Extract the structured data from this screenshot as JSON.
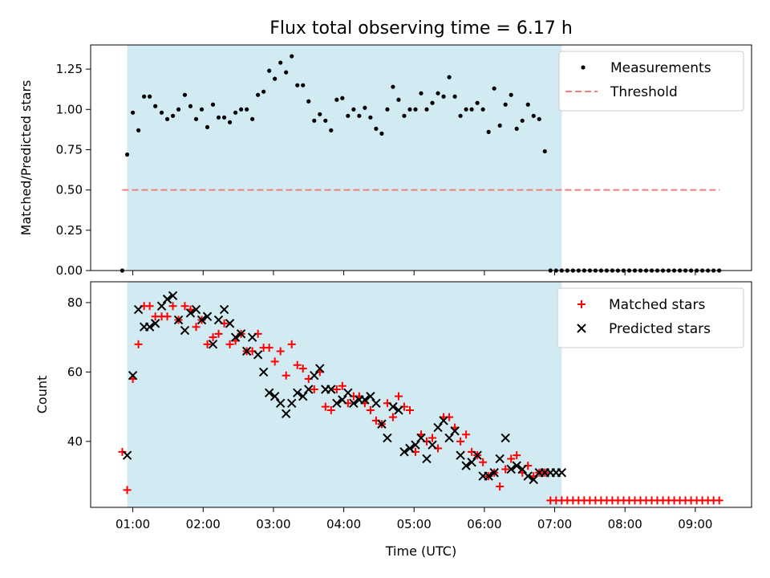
{
  "chart_data": {
    "title": "Flux total observing time = 6.17 h",
    "xlabel": "Time (UTC)",
    "x_tick_labels": [
      "01:00",
      "02:00",
      "03:00",
      "04:00",
      "05:00",
      "06:00",
      "07:00",
      "08:00",
      "09:00"
    ],
    "x_tick_hours": [
      1,
      2,
      3,
      4,
      5,
      6,
      7,
      8,
      9
    ],
    "x_range_hours": [
      0.4,
      9.8
    ],
    "shaded_interval_hours": [
      0.92,
      7.1
    ],
    "shade_color": "#add8e6",
    "panels": [
      {
        "type": "scatter",
        "ylabel": "Matched/Predicted stars",
        "ylim": [
          0,
          1.4
        ],
        "y_ticks": [
          0.0,
          0.25,
          0.5,
          0.75,
          1.0,
          1.25
        ],
        "y_tick_labels": [
          "0.00",
          "0.25",
          "0.50",
          "0.75",
          "1.00",
          "1.25"
        ],
        "legend_position": "top-right",
        "series": [
          {
            "name": "Measurements",
            "marker": "dot",
            "color": "#000000",
            "x": [
              0.85,
              0.92,
              1.0,
              1.08,
              1.16,
              1.24,
              1.32,
              1.41,
              1.49,
              1.57,
              1.65,
              1.74,
              1.82,
              1.9,
              1.98,
              2.06,
              2.14,
              2.22,
              2.3,
              2.38,
              2.46,
              2.54,
              2.62,
              2.7,
              2.78,
              2.86,
              2.94,
              3.02,
              3.1,
              3.18,
              3.26,
              3.34,
              3.42,
              3.5,
              3.58,
              3.66,
              3.74,
              3.82,
              3.9,
              3.98,
              4.06,
              4.14,
              4.22,
              4.3,
              4.38,
              4.46,
              4.54,
              4.62,
              4.7,
              4.78,
              4.86,
              4.94,
              5.02,
              5.1,
              5.18,
              5.26,
              5.34,
              5.42,
              5.5,
              5.58,
              5.66,
              5.74,
              5.82,
              5.9,
              5.98,
              6.06,
              6.14,
              6.22,
              6.3,
              6.38,
              6.46,
              6.54,
              6.62,
              6.7,
              6.78,
              6.86,
              6.94,
              7.02,
              7.1,
              7.18,
              7.26,
              7.34,
              7.42,
              7.5,
              7.58,
              7.66,
              7.74,
              7.82,
              7.9,
              7.98,
              8.06,
              8.14,
              8.22,
              8.3,
              8.38,
              8.46,
              8.54,
              8.62,
              8.7,
              8.78,
              8.86,
              8.94,
              9.02,
              9.1,
              9.18,
              9.26,
              9.34
            ],
            "y": [
              0.0,
              0.72,
              0.98,
              0.87,
              1.08,
              1.08,
              1.02,
              0.98,
              0.94,
              0.96,
              1.0,
              1.09,
              1.02,
              0.94,
              1.0,
              0.89,
              1.03,
              0.95,
              0.95,
              0.92,
              0.98,
              1.0,
              1.0,
              0.94,
              1.09,
              1.11,
              1.24,
              1.19,
              1.29,
              1.23,
              1.33,
              1.15,
              1.15,
              1.05,
              0.93,
              0.97,
              0.93,
              0.87,
              1.06,
              1.07,
              0.96,
              1.0,
              0.96,
              1.01,
              0.95,
              0.88,
              0.85,
              1.0,
              1.14,
              1.06,
              0.96,
              1.0,
              1.0,
              1.1,
              1.0,
              1.04,
              1.1,
              1.08,
              1.2,
              1.08,
              0.96,
              1.0,
              1.0,
              1.04,
              1.0,
              0.86,
              1.13,
              0.9,
              1.03,
              1.09,
              0.88,
              0.93,
              1.03,
              0.96,
              0.94,
              0.74,
              0.0,
              0.0,
              0.0,
              0.0,
              0.0,
              0.0,
              0.0,
              0.0,
              0.0,
              0.0,
              0.0,
              0.0,
              0.0,
              0.0,
              0.0,
              0.0,
              0.0,
              0.0,
              0.0,
              0.0,
              0.0,
              0.0,
              0.0,
              0.0,
              0.0,
              0.0,
              0.0,
              0.0,
              0.0,
              0.0,
              0.0
            ]
          },
          {
            "name": "Threshold",
            "marker": "dashed-line",
            "color": "#f08080",
            "x": [
              0.85,
              9.35
            ],
            "y": [
              0.5,
              0.5
            ]
          }
        ]
      },
      {
        "type": "scatter",
        "ylabel": "Count",
        "ylim": [
          21,
          86
        ],
        "y_ticks": [
          40,
          60,
          80
        ],
        "y_tick_labels": [
          "40",
          "60",
          "80"
        ],
        "legend_position": "top-right",
        "series": [
          {
            "name": "Matched stars",
            "marker": "plus",
            "color": "#ff0000",
            "x": [
              0.85,
              0.92,
              1.0,
              1.08,
              1.16,
              1.24,
              1.32,
              1.41,
              1.49,
              1.57,
              1.65,
              1.74,
              1.82,
              1.9,
              1.98,
              2.06,
              2.14,
              2.22,
              2.3,
              2.38,
              2.46,
              2.54,
              2.62,
              2.7,
              2.78,
              2.86,
              2.94,
              3.02,
              3.1,
              3.18,
              3.26,
              3.34,
              3.42,
              3.5,
              3.58,
              3.66,
              3.74,
              3.82,
              3.9,
              3.98,
              4.06,
              4.14,
              4.22,
              4.3,
              4.38,
              4.46,
              4.54,
              4.62,
              4.7,
              4.78,
              4.86,
              4.94,
              5.02,
              5.1,
              5.18,
              5.26,
              5.34,
              5.42,
              5.5,
              5.58,
              5.66,
              5.74,
              5.82,
              5.9,
              5.98,
              6.06,
              6.14,
              6.22,
              6.3,
              6.38,
              6.46,
              6.54,
              6.62,
              6.7,
              6.78,
              6.86,
              6.94,
              7.02,
              7.1,
              7.18,
              7.26,
              7.34,
              7.42,
              7.5,
              7.58,
              7.66,
              7.74,
              7.82,
              7.9,
              7.98,
              8.06,
              8.14,
              8.22,
              8.3,
              8.38,
              8.46,
              8.54,
              8.62,
              8.7,
              8.78,
              8.86,
              8.94,
              9.02,
              9.1,
              9.18,
              9.26,
              9.34
            ],
            "y": [
              37,
              26,
              58,
              68,
              79,
              79,
              76,
              76,
              76,
              79,
              75,
              79,
              78,
              73,
              75,
              68,
              70,
              71,
              74,
              68,
              69,
              71,
              66,
              66,
              71,
              67,
              67,
              63,
              66,
              59,
              68,
              62,
              61,
              58,
              55,
              60,
              50,
              49,
              55,
              56,
              51,
              53,
              53,
              51,
              49,
              46,
              45,
              51,
              47,
              53,
              50,
              49,
              37,
              42,
              40,
              41,
              38,
              47,
              47,
              44,
              40,
              42,
              37,
              36,
              34,
              30,
              31,
              27,
              32,
              35,
              36,
              31,
              33,
              30,
              31,
              31,
              23,
              23,
              23,
              23,
              23,
              23,
              23,
              23,
              23,
              23,
              23,
              23,
              23,
              23,
              23,
              23,
              23,
              23,
              23,
              23,
              23,
              23,
              23,
              23,
              23,
              23,
              23,
              23,
              23,
              23,
              23
            ]
          },
          {
            "name": "Predicted stars",
            "marker": "cross",
            "color": "#000000",
            "x": [
              0.92,
              1.0,
              1.08,
              1.16,
              1.24,
              1.32,
              1.41,
              1.49,
              1.57,
              1.65,
              1.74,
              1.82,
              1.9,
              1.98,
              2.06,
              2.14,
              2.22,
              2.3,
              2.38,
              2.46,
              2.54,
              2.62,
              2.7,
              2.78,
              2.86,
              2.94,
              3.02,
              3.1,
              3.18,
              3.26,
              3.34,
              3.42,
              3.5,
              3.58,
              3.66,
              3.74,
              3.82,
              3.9,
              3.98,
              4.06,
              4.14,
              4.22,
              4.3,
              4.38,
              4.46,
              4.54,
              4.62,
              4.7,
              4.78,
              4.86,
              4.94,
              5.02,
              5.1,
              5.18,
              5.26,
              5.34,
              5.42,
              5.5,
              5.58,
              5.66,
              5.74,
              5.82,
              5.9,
              5.98,
              6.06,
              6.14,
              6.22,
              6.3,
              6.38,
              6.46,
              6.54,
              6.62,
              6.7,
              6.78,
              6.86,
              6.94,
              7.02,
              7.1
            ],
            "y": [
              36,
              59,
              78,
              73,
              73,
              74,
              79,
              81,
              82,
              75,
              72,
              77,
              78,
              75,
              76,
              68,
              75,
              78,
              74,
              70,
              71,
              66,
              70,
              65,
              60,
              54,
              53,
              51,
              48,
              51,
              54,
              53,
              55,
              59,
              61,
              55,
              55,
              51,
              52,
              54,
              51,
              52,
              52,
              53,
              51,
              45,
              41,
              50,
              49,
              37,
              38,
              39,
              41,
              35,
              39,
              44,
              46,
              41,
              43,
              36,
              33,
              34,
              36,
              30,
              30,
              31,
              35,
              41,
              32,
              33,
              32,
              30,
              29,
              31,
              31,
              31,
              31,
              31
            ]
          }
        ]
      }
    ]
  }
}
